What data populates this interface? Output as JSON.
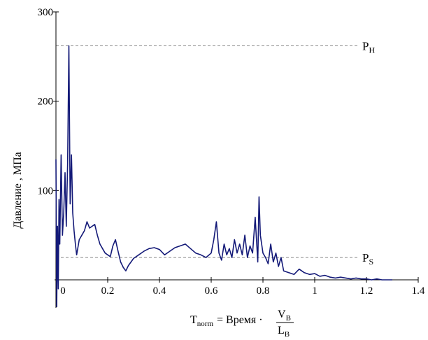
{
  "chart_data": {
    "type": "line",
    "xlim": [
      0,
      1.4
    ],
    "ylim": [
      0,
      300
    ],
    "x_ticks": [
      {
        "value": 0,
        "label": "0"
      },
      {
        "value": 0.2,
        "label": "0.2"
      },
      {
        "value": 0.4,
        "label": "0.4"
      },
      {
        "value": 0.6,
        "label": "0.6"
      },
      {
        "value": 0.8,
        "label": "0.8"
      },
      {
        "value": 1.0,
        "label": "1"
      },
      {
        "value": 1.2,
        "label": "1.2"
      },
      {
        "value": 1.4,
        "label": "1.4"
      }
    ],
    "y_ticks": [
      {
        "value": 100,
        "label": "100"
      },
      {
        "value": 200,
        "label": "200"
      },
      {
        "value": 300,
        "label": "300"
      }
    ],
    "ylabel": "Давление , МПа",
    "xlabel_formula": {
      "lhs_main": "T",
      "lhs_sub": "norm",
      "middle": " = Время ·",
      "num_main": "V",
      "num_sub": "B",
      "den_main": "L",
      "den_sub": "B"
    },
    "reference_lines": [
      {
        "name_main": "P",
        "name_sub": "H",
        "value": 262
      },
      {
        "name_main": "P",
        "name_sub": "S",
        "value": 25
      }
    ],
    "series": [
      {
        "color": "#141a78",
        "x": [
          0.0,
          0.003,
          0.006,
          0.009,
          0.012,
          0.015,
          0.02,
          0.025,
          0.03,
          0.035,
          0.04,
          0.045,
          0.05,
          0.055,
          0.06,
          0.065,
          0.07,
          0.075,
          0.08,
          0.09,
          0.1,
          0.11,
          0.12,
          0.13,
          0.14,
          0.15,
          0.16,
          0.17,
          0.18,
          0.19,
          0.2,
          0.21,
          0.22,
          0.23,
          0.24,
          0.25,
          0.26,
          0.27,
          0.28,
          0.29,
          0.3,
          0.32,
          0.34,
          0.36,
          0.38,
          0.4,
          0.42,
          0.44,
          0.46,
          0.48,
          0.5,
          0.52,
          0.54,
          0.56,
          0.58,
          0.6,
          0.61,
          0.62,
          0.63,
          0.64,
          0.65,
          0.66,
          0.67,
          0.68,
          0.69,
          0.7,
          0.71,
          0.72,
          0.73,
          0.74,
          0.75,
          0.76,
          0.77,
          0.78,
          0.785,
          0.79,
          0.8,
          0.81,
          0.82,
          0.83,
          0.84,
          0.85,
          0.86,
          0.87,
          0.88,
          0.9,
          0.92,
          0.94,
          0.96,
          0.98,
          1.0,
          1.02,
          1.04,
          1.06,
          1.08,
          1.1,
          1.12,
          1.14,
          1.16,
          1.18,
          1.2,
          1.22,
          1.24,
          1.26,
          1.28,
          1.3
        ],
        "y": [
          135,
          -30,
          60,
          -10,
          90,
          40,
          140,
          50,
          75,
          120,
          60,
          130,
          262,
          85,
          140,
          75,
          55,
          40,
          28,
          45,
          50,
          55,
          65,
          58,
          60,
          62,
          50,
          40,
          35,
          30,
          28,
          26,
          38,
          45,
          32,
          20,
          14,
          10,
          16,
          20,
          24,
          28,
          32,
          35,
          36,
          34,
          28,
          32,
          36,
          38,
          40,
          35,
          30,
          28,
          25,
          30,
          45,
          65,
          30,
          22,
          40,
          28,
          35,
          25,
          45,
          30,
          40,
          28,
          50,
          25,
          38,
          30,
          70,
          20,
          93,
          50,
          30,
          25,
          18,
          40,
          20,
          30,
          15,
          25,
          10,
          8,
          6,
          12,
          8,
          6,
          7,
          4,
          5,
          3,
          2,
          3,
          2,
          1,
          2,
          1,
          1,
          0,
          1,
          0,
          0,
          0
        ]
      }
    ]
  }
}
